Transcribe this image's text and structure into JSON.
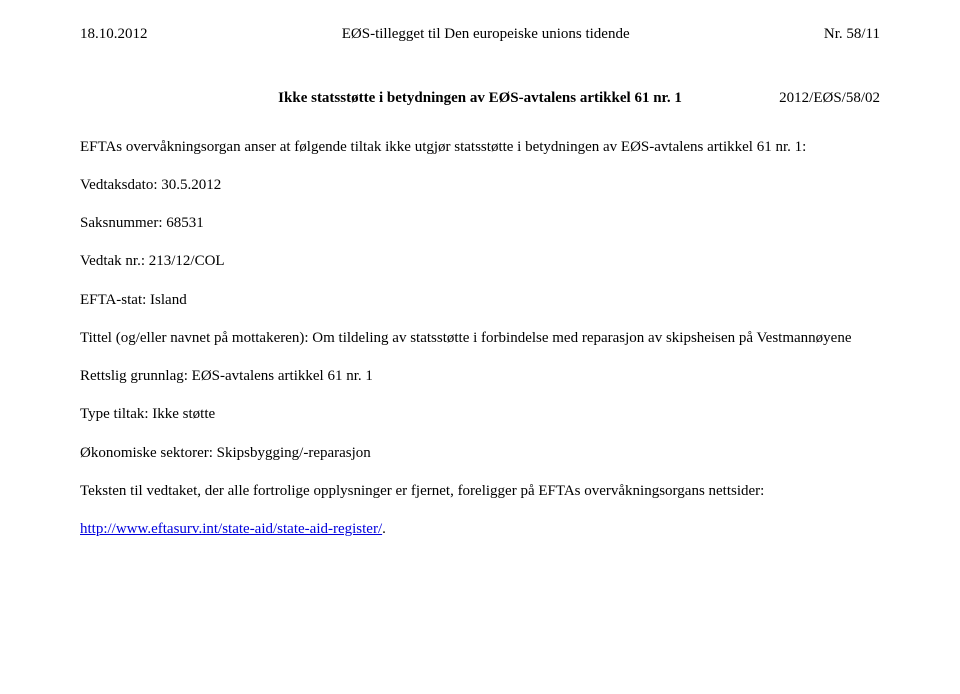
{
  "header": {
    "left_date": "18.10.2012",
    "center_title": "EØS-tillegget til Den europeiske unions tidende",
    "right_page": "Nr. 58/11"
  },
  "title": {
    "main": "Ikke statsstøtte i betydningen av EØS-avtalens artikkel 61 nr. 1",
    "code": "2012/EØS/58/02"
  },
  "body": {
    "intro": "EFTAs overvåkningsorgan anser at følgende tiltak ikke utgjør statsstøtte i betydningen av EØS-avtalens artikkel 61 nr. 1:",
    "decision_date": "Vedtaksdato: 30.5.2012",
    "case_number": "Saksnummer: 68531",
    "decision_number": "Vedtak nr.: 213/12/COL",
    "efta_state": "EFTA-stat: Island",
    "title_recipient": "Tittel (og/eller navnet på mottakeren): Om tildeling av statsstøtte i forbindelse med reparasjon av skipsheisen på Vestmannøyene",
    "legal_basis": "Rettslig grunnlag: EØS-avtalens artikkel 61 nr. 1",
    "type_measure": "Type tiltak: Ikke støtte",
    "economic_sectors": "Økonomiske sektorer: Skipsbygging/-reparasjon",
    "text_decision": "Teksten til vedtaket, der alle fortrolige opplysninger er fjernet, foreligger på EFTAs overvåkningsorgans nettsider:",
    "link_text": "http://www.eftasurv.int/state-aid/state-aid-register/",
    "link_trailing": "."
  }
}
